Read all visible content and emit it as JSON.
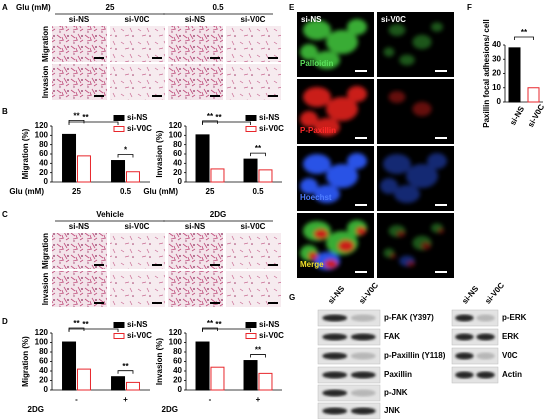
{
  "panel_labels": [
    "A",
    "B",
    "C",
    "D",
    "E",
    "F",
    "G"
  ],
  "panel_a": {
    "condition_label": "Glu (mM)",
    "conditions": [
      "25",
      "0.5"
    ],
    "columns": [
      "si-NS",
      "si-V0C",
      "si-NS",
      "si-V0C"
    ],
    "rows": [
      "Migration",
      "Invasion"
    ]
  },
  "panel_c": {
    "conditions": [
      "Vehicle",
      "2DG"
    ],
    "columns": [
      "si-NS",
      "si-V0C",
      "si-NS",
      "si-V0C"
    ],
    "rows": [
      "Migration",
      "Invasion"
    ]
  },
  "panel_e": {
    "columns": [
      "si-NS",
      "si-V0C"
    ],
    "rows": [
      "Palloidin",
      "P-Paxillin",
      "Hoechst",
      "Merge"
    ]
  },
  "panel_g": {
    "left_columns": [
      "si-NS",
      "si-V0C"
    ],
    "left_rows": [
      "p-FAK (Y397)",
      "FAK",
      "p-Paxillin (Y118)",
      "Paxillin",
      "p-JNK",
      "JNK"
    ],
    "right_columns": [
      "si-NS",
      "si-V0C"
    ],
    "right_rows": [
      "p-ERK",
      "ERK",
      "V0C",
      "Actin"
    ]
  },
  "chart_data": [
    {
      "type": "bar",
      "y_label": "Migration (%)",
      "x_label": "Glu (mM)",
      "categories": [
        "25",
        "0.5"
      ],
      "series": [
        {
          "name": "si-NS",
          "color": "#000000",
          "values": [
            102,
            46
          ]
        },
        {
          "name": "si-V0C",
          "color": "#e8262b",
          "fill": "#ffffff",
          "values": [
            56,
            22
          ]
        }
      ],
      "ylim": [
        0,
        120
      ],
      "yticks": [
        0,
        20,
        40,
        60,
        80,
        100,
        120
      ],
      "annotations": [
        "**",
        "**",
        "*"
      ]
    },
    {
      "type": "bar",
      "y_label": "Invasion (%)",
      "x_label": "Glu (mM)",
      "categories": [
        "25",
        "0.5"
      ],
      "series": [
        {
          "name": "si-NS",
          "color": "#000000",
          "values": [
            101,
            49
          ]
        },
        {
          "name": "si-V0C",
          "color": "#e8262b",
          "fill": "#ffffff",
          "values": [
            28,
            26
          ]
        }
      ],
      "ylim": [
        0,
        120
      ],
      "yticks": [
        0,
        20,
        40,
        60,
        80,
        100,
        120
      ],
      "annotations": [
        "**",
        "**",
        "**"
      ]
    },
    {
      "type": "bar",
      "y_label": "Migration (%)",
      "x_label": "2DG",
      "categories": [
        "-",
        "+"
      ],
      "series": [
        {
          "name": "si-NS",
          "color": "#000000",
          "values": [
            101,
            28
          ]
        },
        {
          "name": "si-V0C",
          "color": "#e8262b",
          "fill": "#ffffff",
          "values": [
            44,
            16
          ]
        }
      ],
      "ylim": [
        0,
        120
      ],
      "yticks": [
        0,
        20,
        40,
        60,
        80,
        100,
        120
      ],
      "annotations": [
        "**",
        "**",
        "**"
      ]
    },
    {
      "type": "bar",
      "y_label": "Invasion (%)",
      "x_label": "2DG",
      "categories": [
        "-",
        "+"
      ],
      "series": [
        {
          "name": "si-NS",
          "color": "#000000",
          "values": [
            101,
            62
          ]
        },
        {
          "name": "si-V0C",
          "color": "#e8262b",
          "fill": "#ffffff",
          "values": [
            48,
            35
          ]
        }
      ],
      "ylim": [
        0,
        120
      ],
      "yticks": [
        0,
        20,
        40,
        60,
        80,
        100,
        120
      ],
      "annotations": [
        "**",
        "**",
        "**"
      ]
    },
    {
      "type": "column",
      "y_label": "Paxillin focal adhesions/ cell",
      "categories": [
        "si-NS",
        "si-V0C"
      ],
      "values": [
        38,
        10
      ],
      "colors": [
        "#000000",
        "#e8262b"
      ],
      "fills": [
        "#000000",
        "#ffffff"
      ],
      "ylim": [
        0,
        40
      ],
      "yticks": [
        0,
        10,
        20,
        30,
        40
      ],
      "annotations": [
        "**"
      ]
    }
  ]
}
